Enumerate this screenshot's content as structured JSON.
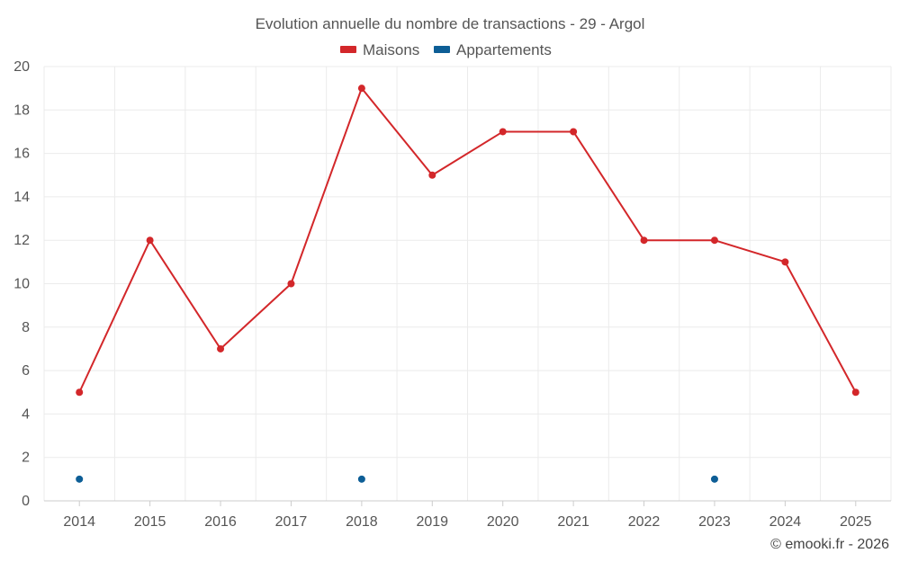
{
  "chart_data": {
    "type": "line",
    "title": "Evolution annuelle du nombre de transactions - 29 - Argol",
    "categories": [
      "2014",
      "2015",
      "2016",
      "2017",
      "2018",
      "2019",
      "2020",
      "2021",
      "2022",
      "2023",
      "2024",
      "2025"
    ],
    "ylim": [
      0,
      20
    ],
    "yticks": [
      0,
      2,
      4,
      6,
      8,
      10,
      12,
      14,
      16,
      18,
      20
    ],
    "grid": true,
    "legend_position": "top-center",
    "series": [
      {
        "name": "Maisons",
        "color": "#d3272a",
        "values": [
          5,
          12,
          7,
          10,
          19,
          15,
          17,
          17,
          12,
          12,
          11,
          5
        ]
      },
      {
        "name": "Appartements",
        "color": "#0d5e96",
        "values": [
          1,
          null,
          null,
          null,
          1,
          null,
          null,
          null,
          null,
          1,
          null,
          null
        ]
      }
    ]
  },
  "credit": "© emooki.fr - 2026"
}
